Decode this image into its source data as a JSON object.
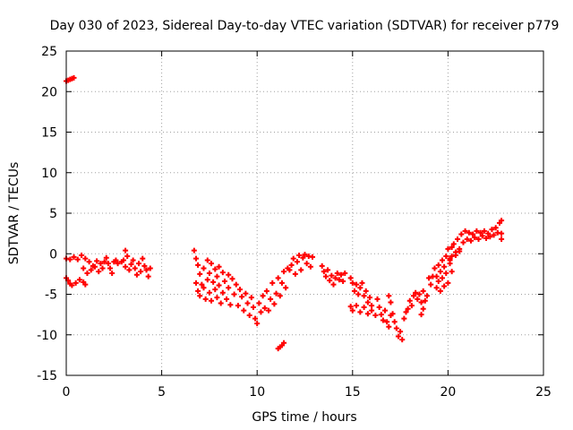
{
  "colors": {
    "series": "#ff0000",
    "grid": "#a0a0a0",
    "axis": "#000000",
    "background": "#ffffff"
  },
  "chart_data": {
    "type": "scatter",
    "title": "Day 030 of 2023, Sidereal Day-to-day VTEC variation (SDTVAR) for receiver p779",
    "xlabel": "GPS time / hours",
    "ylabel": "SDTVAR / TECUs",
    "xlim": [
      0,
      25
    ],
    "ylim": [
      -15,
      25
    ],
    "xticks": [
      0,
      5,
      10,
      15,
      20,
      25
    ],
    "yticks": [
      -15,
      -10,
      -5,
      0,
      5,
      10,
      15,
      20,
      25
    ],
    "grid": true,
    "marker": "plus",
    "series": [
      {
        "name": "SDTVAR",
        "points": [
          [
            0.0,
            21.3
          ],
          [
            0.1,
            21.4
          ],
          [
            0.2,
            21.5
          ],
          [
            0.3,
            21.6
          ],
          [
            0.4,
            21.7
          ],
          [
            0.0,
            -3.0
          ],
          [
            0.1,
            -3.3
          ],
          [
            0.2,
            -3.7
          ],
          [
            0.3,
            -3.9
          ],
          [
            0.5,
            -3.6
          ],
          [
            0.7,
            -3.2
          ],
          [
            0.9,
            -3.5
          ],
          [
            1.0,
            -3.8
          ],
          [
            0.0,
            -0.6
          ],
          [
            0.2,
            -0.7
          ],
          [
            0.4,
            -0.4
          ],
          [
            0.6,
            -0.7
          ],
          [
            0.8,
            -0.2
          ],
          [
            1.0,
            -0.6
          ],
          [
            1.2,
            -1.0
          ],
          [
            1.4,
            -1.5
          ],
          [
            1.6,
            -0.9
          ],
          [
            1.8,
            -1.2
          ],
          [
            2.0,
            -1.0
          ],
          [
            0.9,
            -1.8
          ],
          [
            1.1,
            -2.4
          ],
          [
            1.3,
            -2.0
          ],
          [
            1.5,
            -1.6
          ],
          [
            1.7,
            -2.2
          ],
          [
            1.9,
            -1.8
          ],
          [
            2.1,
            -0.5
          ],
          [
            2.2,
            -1.2
          ],
          [
            2.3,
            -1.8
          ],
          [
            2.4,
            -2.4
          ],
          [
            2.5,
            -1.0
          ],
          [
            2.6,
            -0.8
          ],
          [
            2.7,
            -1.2
          ],
          [
            2.9,
            -1.0
          ],
          [
            3.0,
            -0.8
          ],
          [
            3.1,
            -1.6
          ],
          [
            3.1,
            0.4
          ],
          [
            3.2,
            -0.3
          ],
          [
            3.3,
            -2.0
          ],
          [
            3.4,
            -1.3
          ],
          [
            3.5,
            -0.8
          ],
          [
            3.6,
            -1.8
          ],
          [
            3.7,
            -2.6
          ],
          [
            3.8,
            -1.2
          ],
          [
            3.9,
            -2.2
          ],
          [
            4.0,
            -0.6
          ],
          [
            4.1,
            -1.5
          ],
          [
            4.2,
            -2.0
          ],
          [
            4.3,
            -2.8
          ],
          [
            4.4,
            -1.8
          ],
          [
            6.7,
            0.4
          ],
          [
            6.8,
            -0.6
          ],
          [
            6.8,
            -3.6
          ],
          [
            6.9,
            -1.4
          ],
          [
            6.9,
            -4.6
          ],
          [
            7.0,
            -2.5
          ],
          [
            7.0,
            -5.2
          ],
          [
            7.1,
            -3.8
          ],
          [
            7.2,
            -1.8
          ],
          [
            7.2,
            -4.2
          ],
          [
            7.3,
            -5.6
          ],
          [
            7.4,
            -0.8
          ],
          [
            7.4,
            -3.2
          ],
          [
            7.5,
            -2.4
          ],
          [
            7.5,
            -4.8
          ],
          [
            7.6,
            -1.2
          ],
          [
            7.6,
            -5.8
          ],
          [
            7.7,
            -3.5
          ],
          [
            7.8,
            -1.9
          ],
          [
            7.8,
            -4.4
          ],
          [
            7.9,
            -2.8
          ],
          [
            7.9,
            -5.4
          ],
          [
            8.0,
            -1.6
          ],
          [
            8.0,
            -3.9
          ],
          [
            8.1,
            -6.1
          ],
          [
            8.2,
            -2.3
          ],
          [
            8.2,
            -4.8
          ],
          [
            8.3,
            -3.4
          ],
          [
            8.4,
            -5.6
          ],
          [
            8.5,
            -2.6
          ],
          [
            8.5,
            -4.2
          ],
          [
            8.6,
            -6.3
          ],
          [
            8.7,
            -3.1
          ],
          [
            8.8,
            -5.0
          ],
          [
            8.9,
            -3.8
          ],
          [
            9.0,
            -6.4
          ],
          [
            9.1,
            -4.4
          ],
          [
            9.2,
            -5.3
          ],
          [
            9.3,
            -7.0
          ],
          [
            9.4,
            -4.9
          ],
          [
            9.5,
            -6.1
          ],
          [
            9.6,
            -7.6
          ],
          [
            9.7,
            -5.4
          ],
          [
            9.8,
            -6.6
          ],
          [
            9.9,
            -8.0
          ],
          [
            10.0,
            -8.6
          ],
          [
            10.1,
            -6.1
          ],
          [
            10.2,
            -7.2
          ],
          [
            10.3,
            -5.2
          ],
          [
            10.4,
            -6.7
          ],
          [
            10.5,
            -4.6
          ],
          [
            10.6,
            -7.0
          ],
          [
            10.7,
            -5.6
          ],
          [
            10.8,
            -3.6
          ],
          [
            10.9,
            -6.2
          ],
          [
            11.0,
            -4.9
          ],
          [
            11.1,
            -3.0
          ],
          [
            11.2,
            -5.2
          ],
          [
            11.3,
            -3.6
          ],
          [
            11.4,
            -2.2
          ],
          [
            11.5,
            -4.2
          ],
          [
            11.6,
            -1.8
          ],
          [
            11.1,
            -11.7
          ],
          [
            11.2,
            -11.5
          ],
          [
            11.3,
            -11.3
          ],
          [
            11.4,
            -11.0
          ],
          [
            11.7,
            -2.0
          ],
          [
            11.8,
            -1.4
          ],
          [
            11.9,
            -0.6
          ],
          [
            12.0,
            -2.5
          ],
          [
            12.1,
            -1.0
          ],
          [
            12.2,
            -0.2
          ],
          [
            12.3,
            -2.0
          ],
          [
            12.4,
            -0.5
          ],
          [
            12.5,
            -0.1
          ],
          [
            12.6,
            -1.2
          ],
          [
            12.7,
            -0.3
          ],
          [
            12.8,
            -1.6
          ],
          [
            12.9,
            -0.4
          ],
          [
            13.4,
            -1.5
          ],
          [
            13.5,
            -2.2
          ],
          [
            13.6,
            -2.8
          ],
          [
            13.7,
            -2.0
          ],
          [
            13.8,
            -3.3
          ],
          [
            13.9,
            -2.7
          ],
          [
            14.0,
            -3.8
          ],
          [
            14.1,
            -3.0
          ],
          [
            14.2,
            -2.4
          ],
          [
            14.3,
            -3.2
          ],
          [
            14.4,
            -2.6
          ],
          [
            14.5,
            -3.4
          ],
          [
            14.6,
            -2.4
          ],
          [
            14.9,
            -3.0
          ],
          [
            15.0,
            -3.6
          ],
          [
            15.1,
            -4.6
          ],
          [
            15.2,
            -3.8
          ],
          [
            15.3,
            -5.0
          ],
          [
            15.4,
            -4.2
          ],
          [
            15.5,
            -3.6
          ],
          [
            15.6,
            -5.2
          ],
          [
            15.7,
            -4.6
          ],
          [
            15.8,
            -6.0
          ],
          [
            15.9,
            -5.4
          ],
          [
            16.0,
            -6.4
          ],
          [
            14.9,
            -6.5
          ],
          [
            15.0,
            -7.0
          ],
          [
            15.2,
            -6.4
          ],
          [
            15.4,
            -7.2
          ],
          [
            15.6,
            -6.6
          ],
          [
            15.8,
            -7.4
          ],
          [
            16.0,
            -7.0
          ],
          [
            16.2,
            -7.6
          ],
          [
            16.3,
            -5.6
          ],
          [
            16.4,
            -6.6
          ],
          [
            16.5,
            -7.5
          ],
          [
            16.6,
            -8.2
          ],
          [
            16.7,
            -7.0
          ],
          [
            16.8,
            -8.4
          ],
          [
            16.9,
            -9.0
          ],
          [
            17.0,
            -7.6
          ],
          [
            16.9,
            -5.2
          ],
          [
            17.0,
            -6.0
          ],
          [
            17.1,
            -7.4
          ],
          [
            17.2,
            -8.4
          ],
          [
            17.3,
            -9.2
          ],
          [
            17.4,
            -10.2
          ],
          [
            17.5,
            -9.6
          ],
          [
            17.6,
            -10.6
          ],
          [
            17.7,
            -8.0
          ],
          [
            17.8,
            -7.2
          ],
          [
            17.9,
            -6.8
          ],
          [
            18.0,
            -5.8
          ],
          [
            18.1,
            -6.4
          ],
          [
            18.2,
            -5.2
          ],
          [
            18.3,
            -4.8
          ],
          [
            18.4,
            -5.6
          ],
          [
            18.5,
            -5.0
          ],
          [
            18.6,
            -6.0
          ],
          [
            18.7,
            -4.6
          ],
          [
            18.8,
            -5.8
          ],
          [
            18.9,
            -5.2
          ],
          [
            18.6,
            -7.5
          ],
          [
            18.7,
            -6.8
          ],
          [
            19.0,
            -3.0
          ],
          [
            19.1,
            -3.8
          ],
          [
            19.2,
            -2.8
          ],
          [
            19.3,
            -1.8
          ],
          [
            19.4,
            -2.8
          ],
          [
            19.5,
            -1.4
          ],
          [
            19.6,
            -2.2
          ],
          [
            19.7,
            -0.8
          ],
          [
            19.8,
            -1.6
          ],
          [
            19.9,
            -0.3
          ],
          [
            20.0,
            0.6
          ],
          [
            20.1,
            -0.6
          ],
          [
            20.2,
            0.8
          ],
          [
            19.4,
            -4.2
          ],
          [
            19.5,
            -3.4
          ],
          [
            19.6,
            -4.6
          ],
          [
            19.7,
            -3.0
          ],
          [
            19.8,
            -4.0
          ],
          [
            19.9,
            -2.4
          ],
          [
            20.0,
            -3.6
          ],
          [
            20.1,
            -1.2
          ],
          [
            20.2,
            -2.2
          ],
          [
            20.3,
            1.2
          ],
          [
            20.4,
            0.2
          ],
          [
            20.5,
            1.8
          ],
          [
            20.6,
            0.6
          ],
          [
            20.7,
            2.4
          ],
          [
            20.8,
            1.4
          ],
          [
            20.9,
            2.8
          ],
          [
            21.0,
            1.8
          ],
          [
            21.1,
            2.6
          ],
          [
            21.2,
            1.6
          ],
          [
            21.3,
            2.4
          ],
          [
            21.4,
            2.0
          ],
          [
            21.5,
            2.8
          ],
          [
            21.6,
            1.8
          ],
          [
            21.7,
            2.6
          ],
          [
            21.8,
            2.2
          ],
          [
            21.9,
            2.8
          ],
          [
            22.0,
            1.9
          ],
          [
            22.1,
            2.5
          ],
          [
            22.2,
            2.1
          ],
          [
            22.3,
            3.0
          ],
          [
            22.4,
            2.3
          ],
          [
            22.5,
            3.2
          ],
          [
            22.6,
            2.6
          ],
          [
            22.7,
            3.8
          ],
          [
            22.8,
            4.1
          ],
          [
            22.8,
            2.5
          ],
          [
            22.8,
            1.8
          ],
          [
            20.1,
            -0.8
          ],
          [
            20.2,
            -0.3
          ],
          [
            20.4,
            -0.2
          ],
          [
            20.6,
            0.3
          ]
        ]
      }
    ]
  }
}
